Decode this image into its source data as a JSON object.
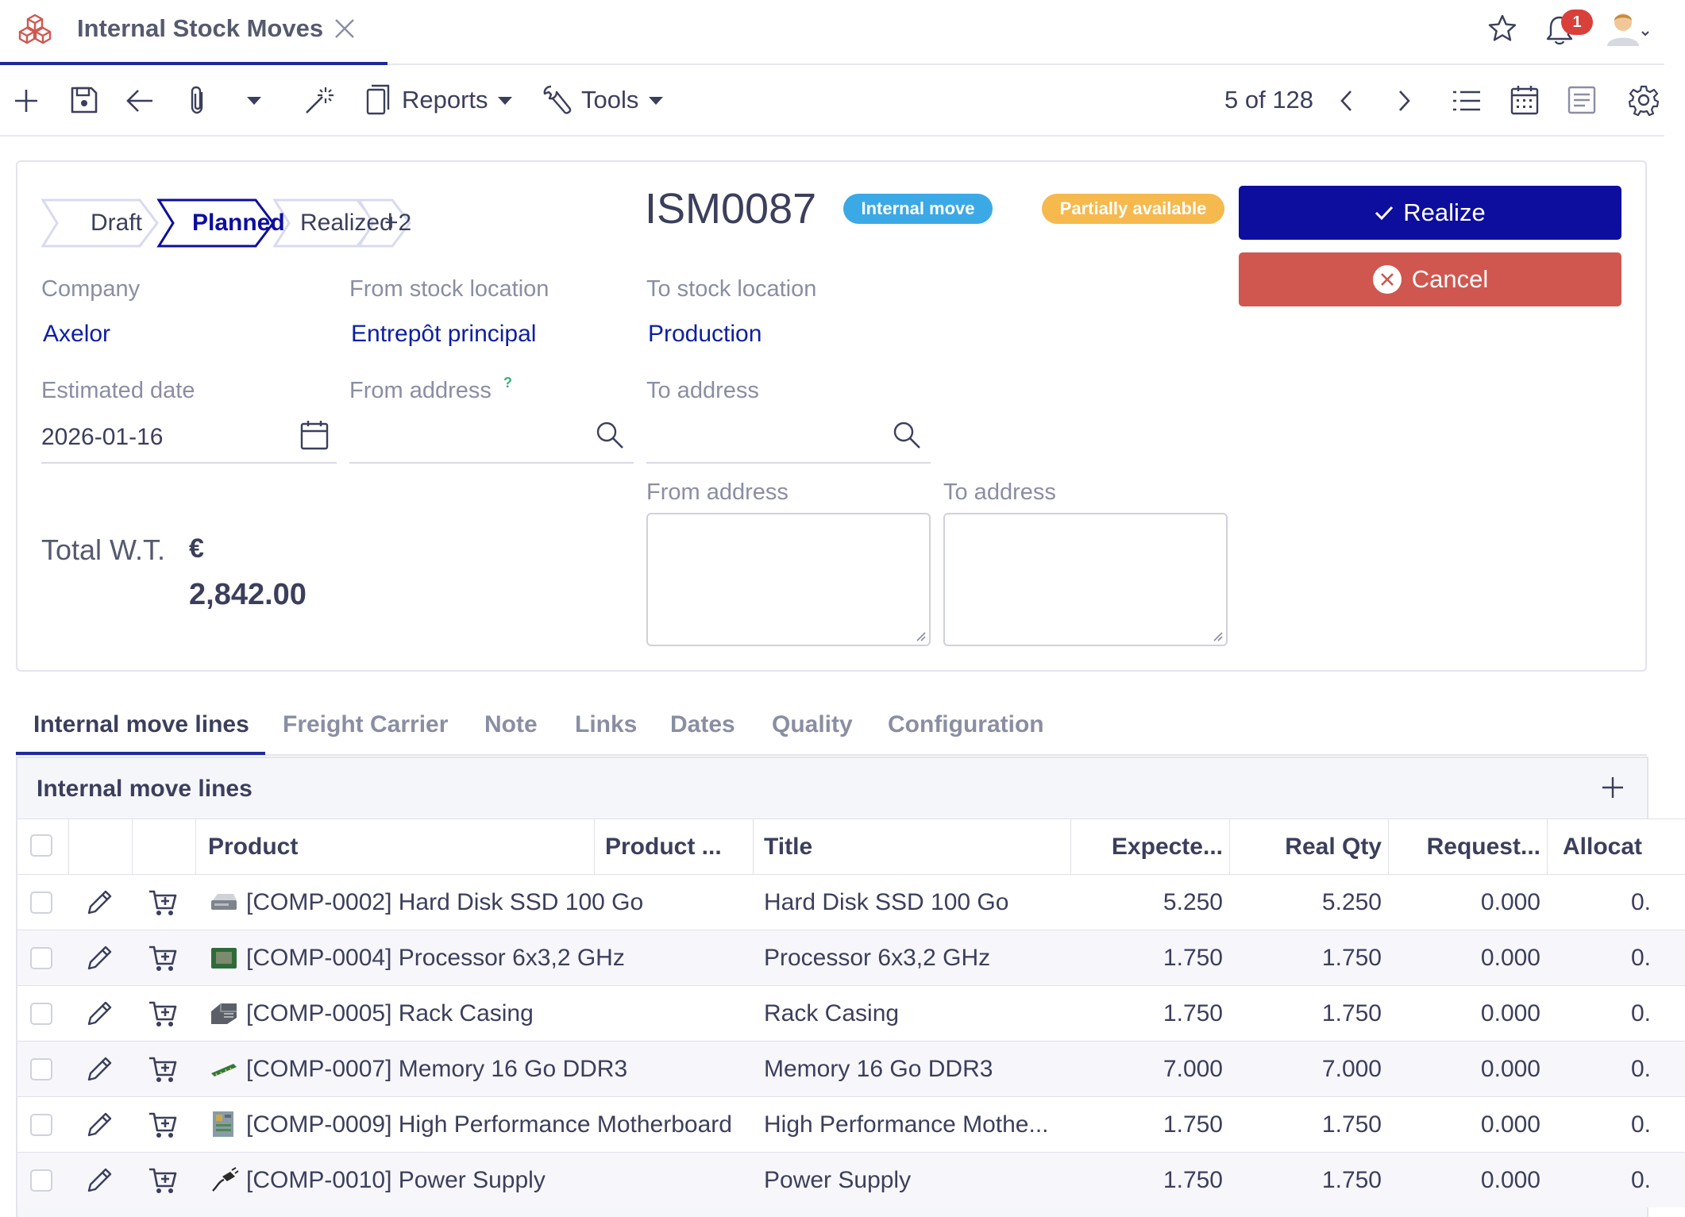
{
  "app": {
    "title": "Internal Stock Moves",
    "notification_count": "1"
  },
  "toolbar": {
    "reports_label": "Reports",
    "tools_label": "Tools",
    "pager": "5 of 128"
  },
  "record": {
    "status_steps": [
      "Draft",
      "Planned",
      "Realized",
      "+2"
    ],
    "active_step": "Planned",
    "reference": "ISM0087",
    "type_badge": "Internal move",
    "availability_badge": "Partially available",
    "realize_label": "Realize",
    "cancel_label": "Cancel",
    "company_label": "Company",
    "company_value": "Axelor",
    "from_location_label": "From stock location",
    "from_location_value": "Entrepôt principal",
    "to_location_label": "To stock location",
    "to_location_value": "Production",
    "estimated_date_label": "Estimated date",
    "estimated_date_value": "2026-01-16",
    "from_address_label": "From address",
    "from_address_help": "?",
    "to_address_label": "To address",
    "from_address_text_label": "From address",
    "to_address_text_label": "To address",
    "total_label": "Total W.T.",
    "currency": "€",
    "total_value": "2,842.00"
  },
  "tabs": [
    "Internal move lines",
    "Freight Carrier",
    "Note",
    "Links",
    "Dates",
    "Quality",
    "Configuration"
  ],
  "lines_panel": {
    "title": "Internal move lines",
    "columns": [
      "Product",
      "Product ...",
      "Title",
      "Expecte...",
      "Real Qty",
      "Request...",
      "Allocat"
    ],
    "rows": [
      {
        "product": "[COMP-0002] Hard Disk SSD 100 Go",
        "title": "Hard Disk SSD 100 Go",
        "expected": "5.250",
        "real": "5.250",
        "requested": "0.000",
        "allocated": "0."
      },
      {
        "product": "[COMP-0004] Processor 6x3,2 GHz",
        "title": "Processor 6x3,2 GHz",
        "expected": "1.750",
        "real": "1.750",
        "requested": "0.000",
        "allocated": "0."
      },
      {
        "product": "[COMP-0005] Rack Casing",
        "title": "Rack Casing",
        "expected": "1.750",
        "real": "1.750",
        "requested": "0.000",
        "allocated": "0."
      },
      {
        "product": "[COMP-0007] Memory 16 Go DDR3",
        "title": "Memory 16 Go DDR3",
        "expected": "7.000",
        "real": "7.000",
        "requested": "0.000",
        "allocated": "0."
      },
      {
        "product": "[COMP-0009] High Performance Motherboard",
        "title": "High Performance Mothe...",
        "expected": "1.750",
        "real": "1.750",
        "requested": "0.000",
        "allocated": "0."
      },
      {
        "product": "[COMP-0010] Power Supply",
        "title": "Power Supply",
        "expected": "1.750",
        "real": "1.750",
        "requested": "0.000",
        "allocated": "0."
      }
    ]
  },
  "colors": {
    "primary": "#0d0e9e",
    "danger": "#d0574f",
    "info_badge": "#3ba9e6",
    "warning_badge": "#f6b94e"
  }
}
